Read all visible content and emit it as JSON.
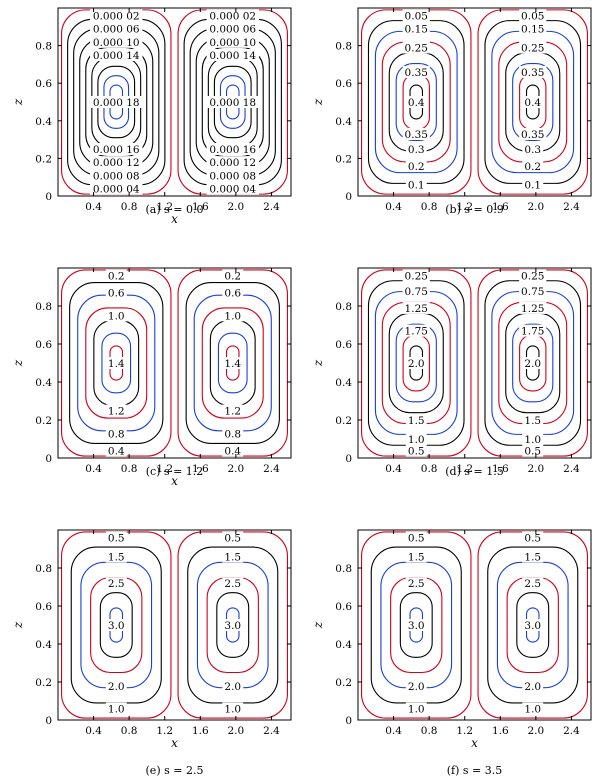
{
  "chart_data": [
    {
      "type": "contour",
      "caption": "(a) s = 0.0",
      "xlabel": "x",
      "ylabel": "z",
      "xlim": [
        0,
        2.62
      ],
      "ylim": [
        0,
        1
      ],
      "xticks": [
        "0.4",
        "0.8",
        "1.2",
        "1.6",
        "2.0",
        "2.4"
      ],
      "yticks": [
        "0",
        "0.2",
        "0.4",
        "0.6",
        "0.8"
      ],
      "cells": [
        {
          "x_center": 0.655,
          "z_center": 0.5
        },
        {
          "x_center": 1.965,
          "z_center": 0.5
        }
      ],
      "levels": [
        2e-05,
        4e-05,
        6e-05,
        8e-05,
        0.0001,
        0.00012,
        0.00014,
        0.00016,
        0.00018
      ],
      "level_colors": [
        "#d0021b",
        "#000000",
        "#000000",
        "#000000",
        "#000000",
        "#000000",
        "#000000",
        "#1a3fd6",
        "#1a3fd6"
      ],
      "labels": [
        {
          "text": "0.000 02",
          "z": 0.96
        },
        {
          "text": "0.000 06",
          "z": 0.89
        },
        {
          "text": "0.000 10",
          "z": 0.82
        },
        {
          "text": "0.000 14",
          "z": 0.75
        },
        {
          "text": "0.000 18",
          "z": 0.5
        },
        {
          "text": "0.000 16",
          "z": 0.25
        },
        {
          "text": "0.000 12",
          "z": 0.18
        },
        {
          "text": "0.000 08",
          "z": 0.11
        },
        {
          "text": "0.000 04",
          "z": 0.04
        }
      ]
    },
    {
      "type": "contour",
      "caption": "(b) s = 0.9",
      "xlabel": "",
      "ylabel": "z",
      "xlim": [
        0,
        2.62
      ],
      "ylim": [
        0,
        1
      ],
      "xticks": [
        "0.4",
        "0.8",
        "1.2",
        "1.6",
        "2.0",
        "2.4"
      ],
      "yticks": [
        "0",
        "0.2",
        "0.4",
        "0.6",
        "0.8"
      ],
      "cells": [
        {
          "x_center": 0.655,
          "z_center": 0.5
        },
        {
          "x_center": 1.965,
          "z_center": 0.5
        }
      ],
      "levels": [
        0.05,
        0.1,
        0.15,
        0.2,
        0.25,
        0.3,
        0.35,
        0.4
      ],
      "level_colors": [
        "#d0021b",
        "#000000",
        "#1a3fd6",
        "#d0021b",
        "#000000",
        "#1a3fd6",
        "#d0021b",
        "#000000"
      ],
      "labels": [
        {
          "text": "0.05",
          "z": 0.96
        },
        {
          "text": "0.15",
          "z": 0.89
        },
        {
          "text": "0.25",
          "z": 0.79
        },
        {
          "text": "0.35",
          "z": 0.66
        },
        {
          "text": "0.4",
          "z": 0.5
        },
        {
          "text": "0.35",
          "z": 0.33
        },
        {
          "text": "0.3",
          "z": 0.25
        },
        {
          "text": "0.2",
          "z": 0.16
        },
        {
          "text": "0.1",
          "z": 0.06
        }
      ]
    },
    {
      "type": "contour",
      "caption": "(c) s = 1.2",
      "xlabel": "x",
      "ylabel": "z",
      "xlim": [
        0,
        2.62
      ],
      "ylim": [
        0,
        1
      ],
      "xticks": [
        "0.4",
        "0.8",
        "1.2",
        "1.6",
        "2.0",
        "2.4"
      ],
      "yticks": [
        "0",
        "0.2",
        "0.4",
        "0.6",
        "0.8"
      ],
      "cells": [
        {
          "x_center": 0.655,
          "z_center": 0.5
        },
        {
          "x_center": 1.965,
          "z_center": 0.5
        }
      ],
      "levels": [
        0.2,
        0.4,
        0.6,
        0.8,
        1.0,
        1.2,
        1.4
      ],
      "level_colors": [
        "#d0021b",
        "#000000",
        "#1a3fd6",
        "#d0021b",
        "#000000",
        "#1a3fd6",
        "#d0021b"
      ],
      "labels": [
        {
          "text": "0.2",
          "z": 0.96
        },
        {
          "text": "0.6",
          "z": 0.87
        },
        {
          "text": "1.0",
          "z": 0.75
        },
        {
          "text": "1.4",
          "z": 0.5
        },
        {
          "text": "1.2",
          "z": 0.25
        },
        {
          "text": "0.8",
          "z": 0.13
        },
        {
          "text": "0.4",
          "z": 0.04
        }
      ]
    },
    {
      "type": "contour",
      "caption": "(d) s = 1.5",
      "xlabel": "",
      "ylabel": "z",
      "xlim": [
        0,
        2.62
      ],
      "ylim": [
        0,
        1
      ],
      "xticks": [
        "0.4",
        "0.8",
        "1.2",
        "1.6",
        "2.0",
        "2.4"
      ],
      "yticks": [
        "0",
        "0.2",
        "0.4",
        "0.6",
        "0.8"
      ],
      "cells": [
        {
          "x_center": 0.655,
          "z_center": 0.5
        },
        {
          "x_center": 1.965,
          "z_center": 0.5
        }
      ],
      "levels": [
        0.25,
        0.5,
        0.75,
        1.0,
        1.25,
        1.5,
        1.75,
        2.0
      ],
      "level_colors": [
        "#d0021b",
        "#000000",
        "#1a3fd6",
        "#d0021b",
        "#000000",
        "#1a3fd6",
        "#d0021b",
        "#000000"
      ],
      "labels": [
        {
          "text": "0.25",
          "z": 0.96
        },
        {
          "text": "0.75",
          "z": 0.88
        },
        {
          "text": "1.25",
          "z": 0.79
        },
        {
          "text": "1.75",
          "z": 0.67
        },
        {
          "text": "2.0",
          "z": 0.5
        },
        {
          "text": "1.5",
          "z": 0.2
        },
        {
          "text": "1.0",
          "z": 0.1
        },
        {
          "text": "0.5",
          "z": 0.04
        }
      ]
    },
    {
      "type": "contour",
      "caption": "(e) s = 2.5",
      "xlabel": "x",
      "ylabel": "z",
      "xlim": [
        0,
        2.62
      ],
      "ylim": [
        0,
        1
      ],
      "xticks": [
        "0.4",
        "0.8",
        "1.2",
        "1.6",
        "2.0",
        "2.4"
      ],
      "yticks": [
        "0",
        "0.2",
        "0.4",
        "0.6",
        "0.8"
      ],
      "cells": [
        {
          "x_center": 0.655,
          "z_center": 0.5
        },
        {
          "x_center": 1.965,
          "z_center": 0.5
        }
      ],
      "levels": [
        0.5,
        1.0,
        1.5,
        2.0,
        2.5,
        3.0
      ],
      "level_colors": [
        "#d0021b",
        "#000000",
        "#1a3fd6",
        "#d0021b",
        "#000000",
        "#1a3fd6"
      ],
      "labels": [
        {
          "text": "0.5",
          "z": 0.96
        },
        {
          "text": "1.5",
          "z": 0.86
        },
        {
          "text": "2.5",
          "z": 0.72
        },
        {
          "text": "3.0",
          "z": 0.5
        },
        {
          "text": "2.0",
          "z": 0.18
        },
        {
          "text": "1.0",
          "z": 0.06
        }
      ]
    },
    {
      "type": "contour",
      "caption": "(f) s = 3.5",
      "xlabel": "x",
      "ylabel": "z",
      "xlim": [
        0,
        2.62
      ],
      "ylim": [
        0,
        1
      ],
      "xticks": [
        "0.4",
        "0.8",
        "1.2",
        "1.6",
        "2.0",
        "2.4"
      ],
      "yticks": [
        "0",
        "0.2",
        "0.4",
        "0.6",
        "0.8"
      ],
      "cells": [
        {
          "x_center": 0.655,
          "z_center": 0.5
        },
        {
          "x_center": 1.965,
          "z_center": 0.5
        }
      ],
      "levels": [
        0.5,
        1.0,
        1.5,
        2.0,
        2.5,
        3.0
      ],
      "level_colors": [
        "#d0021b",
        "#000000",
        "#1a3fd6",
        "#d0021b",
        "#000000",
        "#1a3fd6"
      ],
      "labels": [
        {
          "text": "0.5",
          "z": 0.96
        },
        {
          "text": "1.5",
          "z": 0.86
        },
        {
          "text": "2.5",
          "z": 0.72
        },
        {
          "text": "3.0",
          "z": 0.5
        },
        {
          "text": "2.0",
          "z": 0.18
        },
        {
          "text": "1.0",
          "z": 0.06
        }
      ]
    }
  ]
}
